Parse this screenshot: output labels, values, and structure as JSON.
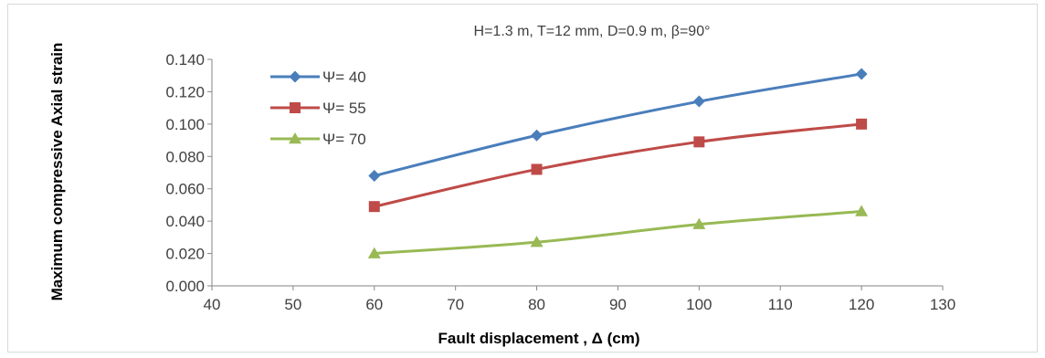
{
  "chart_data": {
    "type": "line",
    "title": "H=1.3 m, T=12 mm, D=0.9 m, β=90°",
    "xlabel": "Fault displacement , Δ (cm)",
    "ylabel": "Maximum compressive Axial  strain",
    "xlim": [
      40,
      130
    ],
    "ylim": [
      0,
      0.14
    ],
    "x_ticks": [
      "40",
      "50",
      "60",
      "70",
      "80",
      "90",
      "100",
      "110",
      "120",
      "130"
    ],
    "y_ticks": [
      "0.000",
      "0.020",
      "0.040",
      "0.060",
      "0.080",
      "0.100",
      "0.120",
      "0.140"
    ],
    "grid": false,
    "legend_position": "top-left",
    "x": [
      60,
      80,
      100,
      120
    ],
    "series": [
      {
        "name": "Ψ= 40",
        "values": [
          0.068,
          0.093,
          0.114,
          0.131
        ],
        "color": "#4a7ebb",
        "marker": "diamond"
      },
      {
        "name": "Ψ= 55",
        "values": [
          0.049,
          0.072,
          0.089,
          0.1
        ],
        "color": "#be4b48",
        "marker": "square"
      },
      {
        "name": "Ψ= 70",
        "values": [
          0.02,
          0.027,
          0.038,
          0.046
        ],
        "color": "#98b954",
        "marker": "triangle"
      }
    ]
  }
}
